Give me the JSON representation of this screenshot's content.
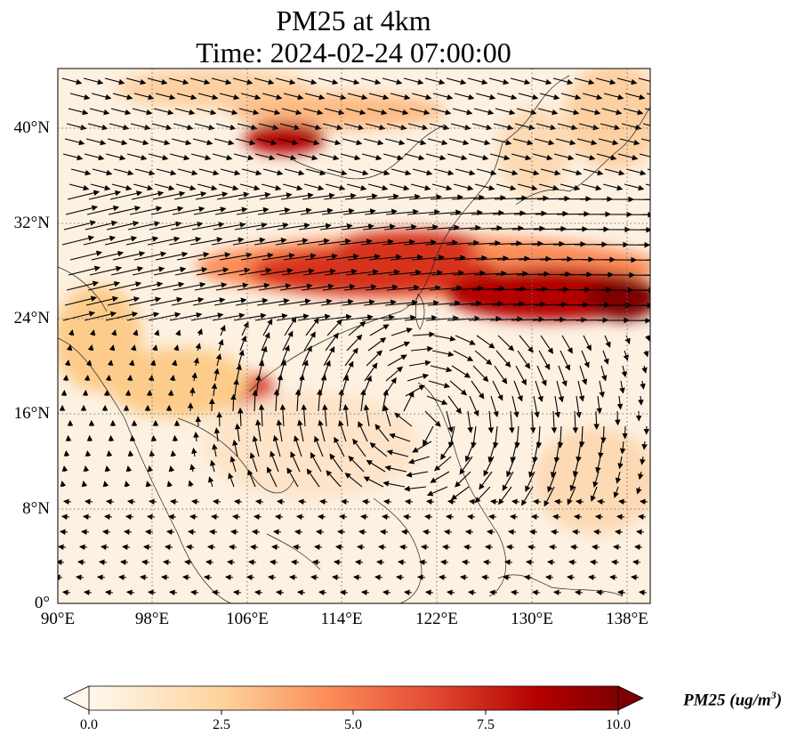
{
  "title_line1": "PM25 at 4km",
  "title_line2": "Time: 2024-02-24 07:00:00",
  "lat_ticks": [
    "40°N",
    "32°N",
    "24°N",
    "16°N",
    "8°N",
    "0°"
  ],
  "lon_ticks": [
    "90°E",
    "98°E",
    "106°E",
    "114°E",
    "122°E",
    "130°E",
    "138°E"
  ],
  "colorbar": {
    "label": "PM25 (ug/m",
    "label_sup": "3",
    "label_close": ")",
    "ticks": [
      "0.0",
      "2.5",
      "5.0",
      "7.5",
      "10.0"
    ],
    "colormap": "OrRd",
    "range": [
      0.0,
      10.0
    ],
    "extend": "both"
  },
  "map": {
    "projection": "PlateCarree",
    "lon_range": [
      90,
      140
    ],
    "lat_range": [
      0,
      45
    ],
    "gridlines": "dotted",
    "vector_field": "wind arrows at 4km",
    "colors": {
      "low": "#fff7ec",
      "mid": "#fdbb84",
      "high": "#e34a33",
      "max": "#7f0000"
    }
  }
}
